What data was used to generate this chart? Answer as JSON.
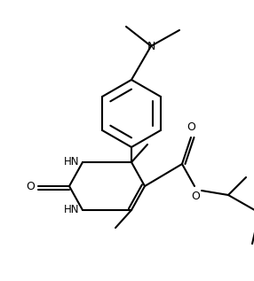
{
  "bg_color": "#ffffff",
  "line_color": "#000000",
  "line_width": 1.5,
  "figsize": [
    2.86,
    3.17
  ],
  "dpi": 100,
  "xlim": [
    0,
    286
  ],
  "ylim": [
    0,
    317
  ]
}
